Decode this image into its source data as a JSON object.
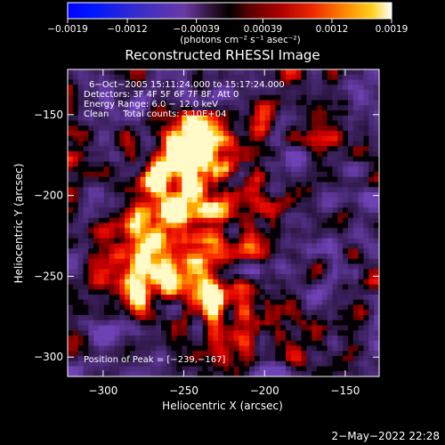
{
  "chart_data": {
    "type": "heatmap",
    "title": "Reconstructed RHESSI Image",
    "xlabel": "Heliocentric X (arcsec)",
    "ylabel": "Heliocentric Y (arcsec)",
    "xlim": [
      -322,
      -129
    ],
    "ylim": [
      -312,
      -122
    ],
    "x_ticks": [
      -300,
      -250,
      -200,
      -150
    ],
    "y_ticks": [
      -300,
      -250,
      -200,
      -150
    ],
    "x_tick_labels": [
      "−300",
      "−250",
      "−200",
      "−150"
    ],
    "y_tick_labels": [
      "−300",
      "−250",
      "−200",
      "−150"
    ],
    "colorbar": {
      "range": [
        -0.0019,
        0.0019
      ],
      "tick_values": [
        -0.0019,
        -0.0012,
        -0.00039,
        0.00039,
        0.0012,
        0.0019
      ],
      "tick_labels": [
        "−0.0019",
        "−0.0012",
        "−0.00039",
        "0.00039",
        "0.0012",
        "0.0019"
      ],
      "unit_label": "(photons cm⁻² s⁻¹ asec⁻²)"
    },
    "annotations": [
      "6−Oct−2005 15:11:24.000 to 15:17:24.000",
      "Detectors: 3F 4F 5F 6F 7F 8F, Att 0",
      "Energy Range: 6.0 − 12.0 keV",
      "Clean     Total counts: 3.10E+04"
    ],
    "peak_label": "Position of Peak = [−239,−167]",
    "peak": [
      -239,
      -167
    ],
    "timestamp": "2−May−2022 22:28"
  }
}
